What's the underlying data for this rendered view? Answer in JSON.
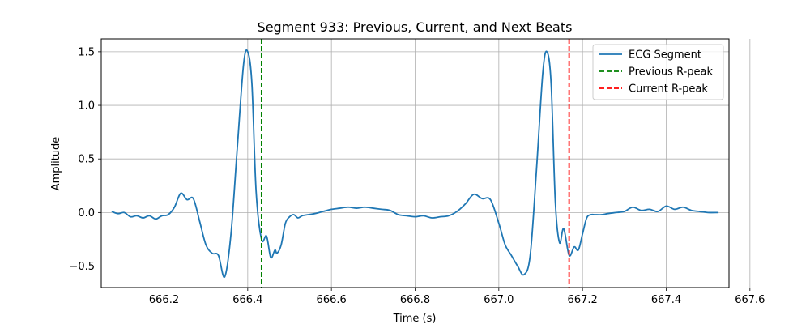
{
  "chart_data": {
    "type": "line",
    "title": "Segment 933: Previous, Current, and Next Beats",
    "xlabel": "Time (s)",
    "ylabel": "Amplitude",
    "xlim": [
      666.05,
      667.55
    ],
    "ylim": [
      -0.7,
      1.62
    ],
    "xticks": [
      666.2,
      666.4,
      666.6,
      666.8,
      667.0,
      667.2,
      667.4,
      667.6
    ],
    "xtick_labels": [
      "666.2",
      "666.4",
      "666.6",
      "666.8",
      "667.0",
      "667.2",
      "667.4",
      "667.6"
    ],
    "yticks": [
      -0.5,
      0.0,
      0.5,
      1.0,
      1.5
    ],
    "ytick_labels": [
      "−0.5",
      "0.0",
      "0.5",
      "1.0",
      "1.5"
    ],
    "grid": true,
    "legend_position": "top-right",
    "series": [
      {
        "name": "ECG Segment",
        "color": "#1f77b4",
        "style": "solid",
        "x": [
          666.075,
          666.09,
          666.105,
          666.12,
          666.135,
          666.15,
          666.165,
          666.18,
          666.195,
          666.21,
          666.225,
          666.24,
          666.255,
          666.27,
          666.285,
          666.3,
          666.315,
          666.33,
          666.345,
          666.36,
          666.375,
          666.39,
          666.4,
          666.41,
          666.42,
          666.433,
          666.445,
          666.455,
          666.465,
          666.47,
          666.48,
          666.49,
          666.5,
          666.51,
          666.52,
          666.53,
          666.545,
          666.56,
          666.58,
          666.6,
          666.62,
          666.64,
          666.66,
          666.68,
          666.7,
          666.72,
          666.74,
          666.76,
          666.78,
          666.8,
          666.82,
          666.84,
          666.86,
          666.88,
          666.9,
          666.92,
          666.94,
          666.96,
          666.98,
          667.0,
          667.015,
          667.03,
          667.045,
          667.06,
          667.075,
          667.09,
          667.105,
          667.115,
          667.125,
          667.135,
          667.145,
          667.155,
          667.168,
          667.18,
          667.19,
          667.2,
          667.21,
          667.22,
          667.23,
          667.245,
          667.26,
          667.28,
          667.3,
          667.32,
          667.34,
          667.36,
          667.38,
          667.4,
          667.42,
          667.44,
          667.46,
          667.48,
          667.5,
          667.525
        ],
        "y": [
          0.01,
          -0.01,
          0.0,
          -0.04,
          -0.03,
          -0.05,
          -0.03,
          -0.06,
          -0.03,
          -0.02,
          0.05,
          0.18,
          0.12,
          0.13,
          -0.08,
          -0.3,
          -0.38,
          -0.4,
          -0.6,
          -0.2,
          0.6,
          1.38,
          1.5,
          1.2,
          0.2,
          -0.25,
          -0.22,
          -0.42,
          -0.35,
          -0.38,
          -0.3,
          -0.1,
          -0.04,
          -0.02,
          -0.05,
          -0.03,
          -0.02,
          -0.01,
          0.01,
          0.03,
          0.04,
          0.05,
          0.04,
          0.05,
          0.04,
          0.03,
          0.02,
          -0.02,
          -0.03,
          -0.04,
          -0.03,
          -0.05,
          -0.04,
          -0.03,
          0.01,
          0.08,
          0.17,
          0.13,
          0.12,
          -0.1,
          -0.3,
          -0.4,
          -0.5,
          -0.58,
          -0.4,
          0.4,
          1.3,
          1.5,
          1.2,
          0.1,
          -0.28,
          -0.15,
          -0.4,
          -0.32,
          -0.35,
          -0.2,
          -0.05,
          -0.02,
          -0.02,
          -0.02,
          -0.01,
          0.0,
          0.01,
          0.05,
          0.02,
          0.03,
          0.01,
          0.06,
          0.03,
          0.05,
          0.02,
          0.01,
          0.0,
          0.0
        ]
      },
      {
        "name": "Previous R-peak",
        "color": "#008000",
        "style": "dashed",
        "x_value": 666.433
      },
      {
        "name": "Current R-peak",
        "color": "#ff0000",
        "style": "dashed",
        "x_value": 667.168
      }
    ]
  }
}
